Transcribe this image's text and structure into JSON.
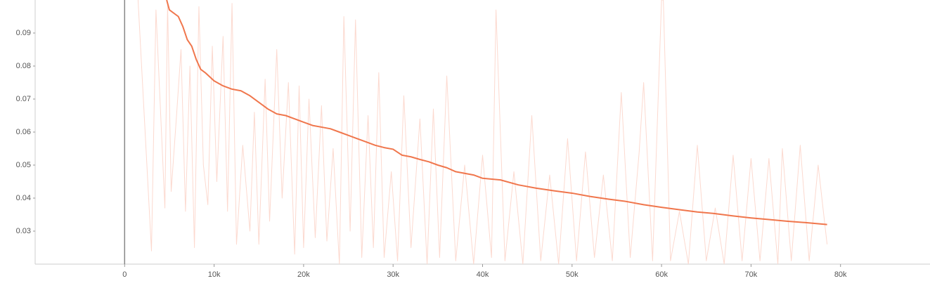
{
  "chart_data": {
    "type": "line",
    "xlim": [
      -10000,
      90000
    ],
    "xticks": [
      {
        "value": 0,
        "label": "0"
      },
      {
        "value": 10000,
        "label": "10k"
      },
      {
        "value": 20000,
        "label": "20k"
      },
      {
        "value": 30000,
        "label": "30k"
      },
      {
        "value": 40000,
        "label": "40k"
      },
      {
        "value": 50000,
        "label": "50k"
      },
      {
        "value": 60000,
        "label": "60k"
      },
      {
        "value": 70000,
        "label": "70k"
      },
      {
        "value": 80000,
        "label": "80k"
      }
    ],
    "ylim": [
      0.02,
      0.1
    ],
    "yticks": [
      0.03,
      0.04,
      0.05,
      0.06,
      0.07,
      0.08,
      0.09
    ],
    "grid": false,
    "series": [
      {
        "color": "#fcd9cf",
        "x": [
          1500,
          3000,
          3500,
          4500,
          4800,
          5200,
          5800,
          6300,
          6800,
          7300,
          7800,
          8300,
          8800,
          9300,
          9800,
          10300,
          11000,
          11500,
          12000,
          12500,
          13200,
          14000,
          14500,
          15000,
          15700,
          16200,
          17000,
          17600,
          18300,
          19000,
          19500,
          20000,
          20600,
          21300,
          22000,
          22600,
          23300,
          24000,
          24500,
          25200,
          25800,
          26500,
          27200,
          27800,
          28400,
          29000,
          29800,
          30500,
          31200,
          32000,
          33000,
          33800,
          34500,
          35200,
          36000,
          37000,
          38000,
          39000,
          40000,
          41000,
          41500,
          42500,
          43500,
          44500,
          45500,
          46500,
          47500,
          48500,
          49500,
          50500,
          51500,
          52500,
          53500,
          54500,
          55500,
          56500,
          57500,
          58000,
          59000,
          60000,
          60200,
          61000,
          62000,
          63000,
          64000,
          65000,
          66000,
          67000,
          68000,
          69000,
          70000,
          71000,
          72000,
          73000,
          73500,
          74500,
          75500,
          76500,
          77500,
          78500
        ],
        "values": [
          0.1,
          0.024,
          0.097,
          0.037,
          0.099,
          0.042,
          0.065,
          0.085,
          0.036,
          0.08,
          0.025,
          0.098,
          0.05,
          0.038,
          0.086,
          0.045,
          0.089,
          0.036,
          0.099,
          0.026,
          0.056,
          0.03,
          0.066,
          0.026,
          0.076,
          0.033,
          0.085,
          0.04,
          0.075,
          0.023,
          0.074,
          0.025,
          0.07,
          0.028,
          0.068,
          0.027,
          0.055,
          0.02,
          0.095,
          0.03,
          0.094,
          0.022,
          0.065,
          0.025,
          0.078,
          0.022,
          0.048,
          0.021,
          0.071,
          0.025,
          0.064,
          0.02,
          0.067,
          0.022,
          0.077,
          0.021,
          0.05,
          0.02,
          0.053,
          0.022,
          0.097,
          0.021,
          0.048,
          0.02,
          0.065,
          0.021,
          0.047,
          0.02,
          0.058,
          0.021,
          0.054,
          0.022,
          0.047,
          0.021,
          0.072,
          0.022,
          0.054,
          0.075,
          0.021,
          0.1,
          0.1,
          0.021,
          0.036,
          0.02,
          0.056,
          0.021,
          0.037,
          0.02,
          0.053,
          0.021,
          0.052,
          0.021,
          0.052,
          0.02,
          0.055,
          0.021,
          0.056,
          0.021,
          0.05,
          0.026
        ]
      },
      {
        "color": "#f0764c",
        "x": [
          4700,
          5000,
          6000,
          6500,
          7000,
          7500,
          8000,
          8500,
          9000,
          10000,
          11000,
          12000,
          13000,
          14000,
          15000,
          16000,
          17000,
          18000,
          19000,
          20000,
          21000,
          22000,
          23000,
          24000,
          25000,
          26000,
          27000,
          28000,
          29000,
          30000,
          31000,
          32000,
          33000,
          34000,
          35000,
          36000,
          37000,
          38000,
          39000,
          40000,
          42000,
          44000,
          46000,
          48000,
          50000,
          52000,
          54000,
          56000,
          58000,
          60000,
          62000,
          64000,
          66000,
          68000,
          70000,
          72000,
          74000,
          76000,
          78500
        ],
        "values": [
          0.1,
          0.097,
          0.095,
          0.092,
          0.088,
          0.086,
          0.082,
          0.079,
          0.078,
          0.0755,
          0.074,
          0.073,
          0.0725,
          0.071,
          0.069,
          0.067,
          0.0655,
          0.065,
          0.064,
          0.063,
          0.062,
          0.0615,
          0.061,
          0.06,
          0.059,
          0.058,
          0.057,
          0.056,
          0.0553,
          0.0548,
          0.053,
          0.0525,
          0.0517,
          0.051,
          0.05,
          0.0492,
          0.048,
          0.0475,
          0.047,
          0.046,
          0.0455,
          0.044,
          0.043,
          0.0422,
          0.0415,
          0.0405,
          0.0397,
          0.039,
          0.038,
          0.0372,
          0.0365,
          0.0358,
          0.0353,
          0.0346,
          0.034,
          0.0335,
          0.033,
          0.0326,
          0.032
        ]
      }
    ]
  }
}
